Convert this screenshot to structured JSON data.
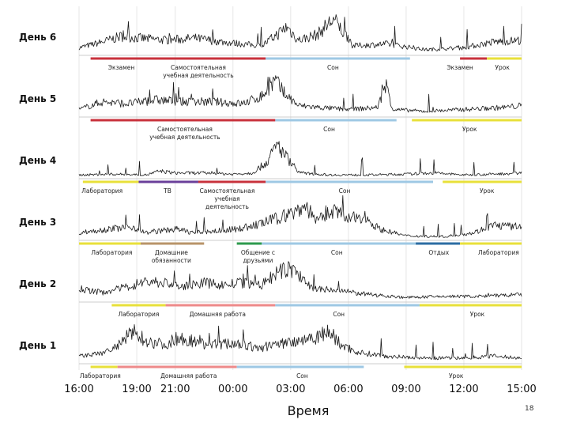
{
  "page": {
    "number": "18"
  },
  "chart_data": {
    "type": "line",
    "title": "",
    "xlabel": "Время",
    "ylabel": "",
    "x_ticks": [
      "16:00",
      "19:00",
      "21:00",
      "00:00",
      "03:00",
      "06:00",
      "09:00",
      "12:00",
      "15:00"
    ],
    "x_tick_hours": [
      0,
      3,
      5,
      8,
      11,
      14,
      17,
      20,
      23
    ],
    "hours_span": 23,
    "colors": {
      "exam": "#c8323c",
      "study": "#c8323c",
      "sleep": "#9ec8e4",
      "lesson": "#e8e03a",
      "lab": "#e8e03a",
      "tv": "#6a3f9a",
      "chores": "#b89469",
      "social": "#2e9a4e",
      "rest": "#2c6da3",
      "homework": "#ee8a8a"
    },
    "days": [
      {
        "label": "День 6",
        "signal": [
          [
            0,
            0.2
          ],
          [
            1.2,
            0.35
          ],
          [
            2.2,
            0.5
          ],
          [
            3.2,
            0.45
          ],
          [
            4.5,
            0.4
          ],
          [
            6,
            0.45
          ],
          [
            7.5,
            0.35
          ],
          [
            9.5,
            0.25
          ],
          [
            10.3,
            0.55
          ],
          [
            10.8,
            0.75
          ],
          [
            11.4,
            0.4
          ],
          [
            12.4,
            0.55
          ],
          [
            13.2,
            0.95
          ],
          [
            13.6,
            0.7
          ],
          [
            14.2,
            0.25
          ],
          [
            16,
            0.3
          ],
          [
            18,
            0.15
          ],
          [
            20,
            0.2
          ],
          [
            21.5,
            0.35
          ],
          [
            23,
            0.4
          ]
        ],
        "segments": [
          {
            "start": 0.6,
            "end": 9.7,
            "category": "exam"
          },
          {
            "start": 9.7,
            "end": 17.2,
            "category": "sleep"
          },
          {
            "start": 19.8,
            "end": 21.2,
            "category": "exam"
          },
          {
            "start": 21.2,
            "end": 23,
            "category": "lesson"
          }
        ],
        "labels": [
          {
            "text": "Экзамен",
            "hour": 2.2
          },
          {
            "text": "Самостоятельная\nучебная деятельность",
            "hour": 6.2
          },
          {
            "text": "Сон",
            "hour": 13.2
          },
          {
            "text": "Экзамен",
            "hour": 19.8
          },
          {
            "text": "Урок",
            "hour": 22
          }
        ]
      },
      {
        "label": "День 5",
        "signal": [
          [
            0,
            0.2
          ],
          [
            1.2,
            0.4
          ],
          [
            2.5,
            0.35
          ],
          [
            4,
            0.45
          ],
          [
            5.5,
            0.4
          ],
          [
            7,
            0.4
          ],
          [
            8.5,
            0.35
          ],
          [
            9.5,
            0.55
          ],
          [
            10.2,
            0.95
          ],
          [
            10.6,
            0.65
          ],
          [
            11.4,
            0.3
          ],
          [
            12.5,
            0.25
          ],
          [
            14,
            0.2
          ],
          [
            15.5,
            0.25
          ],
          [
            16,
            0.85
          ],
          [
            16.3,
            0.2
          ],
          [
            18,
            0.15
          ],
          [
            20,
            0.2
          ],
          [
            22,
            0.25
          ],
          [
            23,
            0.3
          ]
        ],
        "segments": [
          {
            "start": 0.6,
            "end": 10.2,
            "category": "study"
          },
          {
            "start": 10.2,
            "end": 16.5,
            "category": "sleep"
          },
          {
            "start": 17.3,
            "end": 23,
            "category": "lesson"
          }
        ],
        "labels": [
          {
            "text": "Самостоятельная\nучебная деятельность",
            "hour": 5.5
          },
          {
            "text": "Сон",
            "hour": 13
          },
          {
            "text": "Урок",
            "hour": 20.3
          }
        ]
      },
      {
        "label": "День 4",
        "signal": [
          [
            0,
            0.1
          ],
          [
            2,
            0.12
          ],
          [
            3.5,
            0.1
          ],
          [
            4.2,
            0.2
          ],
          [
            5,
            0.15
          ],
          [
            6.5,
            0.15
          ],
          [
            8,
            0.12
          ],
          [
            9,
            0.15
          ],
          [
            9.8,
            0.45
          ],
          [
            10.3,
            0.9
          ],
          [
            10.8,
            0.55
          ],
          [
            11.5,
            0.15
          ],
          [
            13,
            0.1
          ],
          [
            15,
            0.1
          ],
          [
            17,
            0.12
          ],
          [
            18.5,
            0.15
          ],
          [
            20,
            0.1
          ],
          [
            21.5,
            0.12
          ],
          [
            23,
            0.15
          ]
        ],
        "segments": [
          {
            "start": 0.2,
            "end": 3.1,
            "category": "lab"
          },
          {
            "start": 3.1,
            "end": 6.2,
            "category": "tv"
          },
          {
            "start": 6.2,
            "end": 9.7,
            "category": "study"
          },
          {
            "start": 9.7,
            "end": 18.4,
            "category": "sleep"
          },
          {
            "start": 18.9,
            "end": 23,
            "category": "lesson"
          }
        ],
        "labels": [
          {
            "text": "Лаборатория",
            "hour": 1.2
          },
          {
            "text": "ТВ",
            "hour": 4.6
          },
          {
            "text": "Самостоятельная\nучебная\nдеятельность",
            "hour": 7.7
          },
          {
            "text": "Сон",
            "hour": 13.8
          },
          {
            "text": "Урок",
            "hour": 21.2
          }
        ]
      },
      {
        "label": "День 3",
        "signal": [
          [
            0,
            0.2
          ],
          [
            1.5,
            0.3
          ],
          [
            2.8,
            0.35
          ],
          [
            3.5,
            0.2
          ],
          [
            5,
            0.3
          ],
          [
            6,
            0.2
          ],
          [
            7.2,
            0.25
          ],
          [
            8.2,
            0.3
          ],
          [
            9.2,
            0.4
          ],
          [
            10.4,
            0.6
          ],
          [
            11.2,
            0.75
          ],
          [
            11.8,
            0.9
          ],
          [
            12.4,
            0.5
          ],
          [
            13.2,
            0.8
          ],
          [
            14,
            0.55
          ],
          [
            14.8,
            0.65
          ],
          [
            15.6,
            0.3
          ],
          [
            17,
            0.12
          ],
          [
            19,
            0.1
          ],
          [
            20.5,
            0.2
          ],
          [
            21.5,
            0.4
          ],
          [
            23,
            0.35
          ]
        ],
        "segments": [
          {
            "start": 0,
            "end": 3.2,
            "category": "lab"
          },
          {
            "start": 3.2,
            "end": 6.5,
            "category": "chores"
          },
          {
            "start": 8.2,
            "end": 9.5,
            "category": "social"
          },
          {
            "start": 9.5,
            "end": 17.5,
            "category": "sleep"
          },
          {
            "start": 17.5,
            "end": 19.8,
            "category": "rest"
          },
          {
            "start": 19.8,
            "end": 23,
            "category": "lab"
          }
        ],
        "labels": [
          {
            "text": "Лаборатория",
            "hour": 1.7
          },
          {
            "text": "Домашние\nобязанности",
            "hour": 4.8
          },
          {
            "text": "Общение с\nдрузьями",
            "hour": 9.3
          },
          {
            "text": "Сон",
            "hour": 13.4
          },
          {
            "text": "Отдых",
            "hour": 18.7
          },
          {
            "text": "Лаборатория",
            "hour": 21.8
          }
        ]
      },
      {
        "label": "День 2",
        "signal": [
          [
            0,
            0.35
          ],
          [
            1.2,
            0.25
          ],
          [
            2.5,
            0.4
          ],
          [
            3.5,
            0.55
          ],
          [
            4.5,
            0.5
          ],
          [
            5.5,
            0.4
          ],
          [
            6.5,
            0.5
          ],
          [
            7.5,
            0.45
          ],
          [
            8.5,
            0.5
          ],
          [
            9.5,
            0.45
          ],
          [
            10.3,
            0.75
          ],
          [
            11,
            0.9
          ],
          [
            11.6,
            0.6
          ],
          [
            12.2,
            0.35
          ],
          [
            13.5,
            0.3
          ],
          [
            15,
            0.2
          ],
          [
            17,
            0.12
          ],
          [
            19,
            0.15
          ],
          [
            21,
            0.15
          ],
          [
            23,
            0.2
          ]
        ],
        "segments": [
          {
            "start": 1.7,
            "end": 4.5,
            "category": "lab"
          },
          {
            "start": 4.5,
            "end": 10.2,
            "category": "homework"
          },
          {
            "start": 10.2,
            "end": 17.7,
            "category": "sleep"
          },
          {
            "start": 17.7,
            "end": 23,
            "category": "lesson"
          }
        ],
        "labels": [
          {
            "text": "Лаборатория",
            "hour": 3.1
          },
          {
            "text": "Домашняя работа",
            "hour": 7.2
          },
          {
            "text": "Сон",
            "hour": 13.5
          },
          {
            "text": "Урок",
            "hour": 20.7
          }
        ]
      },
      {
        "label": "День 1",
        "signal": [
          [
            0,
            0.2
          ],
          [
            1,
            0.25
          ],
          [
            2,
            0.45
          ],
          [
            2.8,
            0.85
          ],
          [
            3.5,
            0.6
          ],
          [
            4.5,
            0.5
          ],
          [
            5.2,
            0.7
          ],
          [
            6.2,
            0.55
          ],
          [
            7.2,
            0.5
          ],
          [
            8.2,
            0.55
          ],
          [
            9.2,
            0.4
          ],
          [
            10.2,
            0.5
          ],
          [
            11.2,
            0.6
          ],
          [
            12.2,
            0.7
          ],
          [
            13,
            0.85
          ],
          [
            13.6,
            0.5
          ],
          [
            14.5,
            0.3
          ],
          [
            16,
            0.2
          ],
          [
            18,
            0.15
          ],
          [
            20,
            0.15
          ],
          [
            21.5,
            0.2
          ],
          [
            23,
            0.15
          ]
        ],
        "segments": [
          {
            "start": 0.6,
            "end": 2,
            "category": "lab"
          },
          {
            "start": 2,
            "end": 8.2,
            "category": "homework"
          },
          {
            "start": 8.2,
            "end": 14.8,
            "category": "sleep"
          },
          {
            "start": 16.9,
            "end": 23,
            "category": "lesson"
          }
        ],
        "labels": [
          {
            "text": "Лаборатория",
            "hour": 1.1
          },
          {
            "text": "Домашняя работа",
            "hour": 5.7
          },
          {
            "text": "Сон",
            "hour": 11.6
          },
          {
            "text": "Урок",
            "hour": 19.6
          }
        ]
      }
    ]
  }
}
